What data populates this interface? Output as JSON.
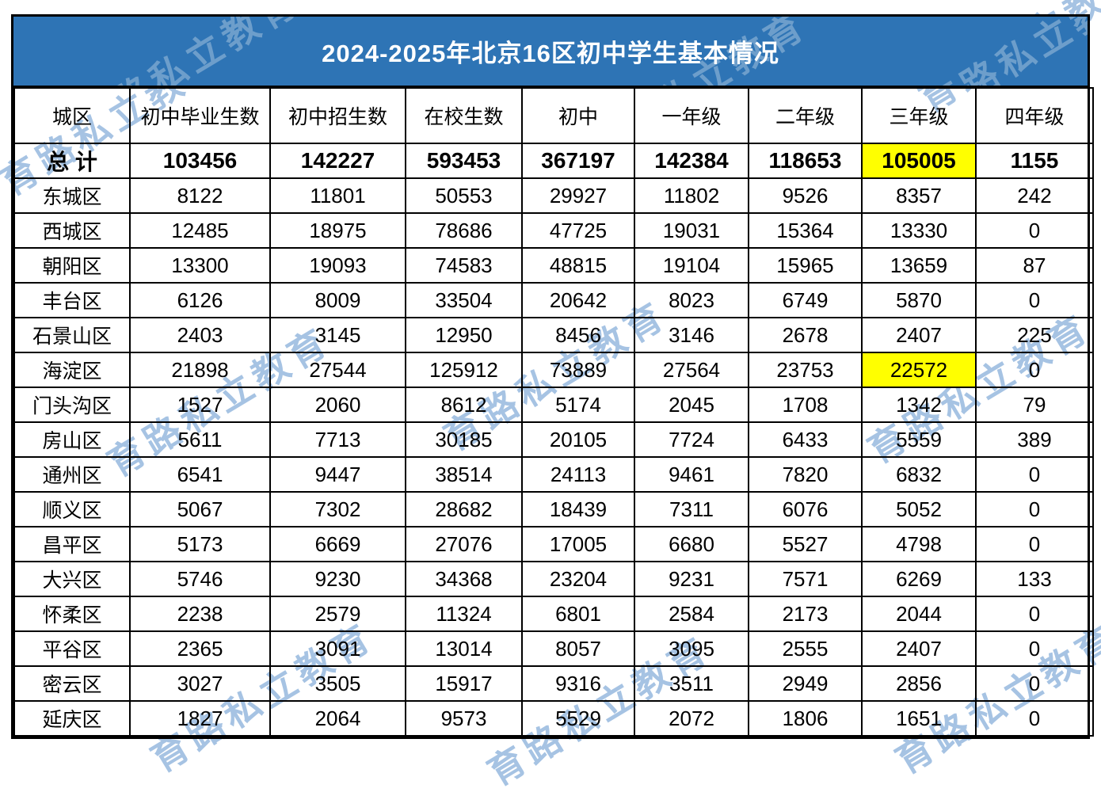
{
  "title": "2024-2025年北京16区初中学生基本情况",
  "watermark_text": "育路私立教育",
  "colors": {
    "title_bar_bg": "#2e74b5",
    "title_text": "#ffffff",
    "highlight": "#ffff00",
    "watermark": "#a6c3e3",
    "border": "#000000"
  },
  "chart_data": {
    "type": "table",
    "title": "2024-2025年北京16区初中学生基本情况",
    "columns": [
      "城区",
      "初中毕业生数",
      "初中招生数",
      "在校生数",
      "初中",
      "一年级",
      "二年级",
      "三年级",
      "四年级"
    ],
    "total_row": {
      "label": "总 计",
      "values": [
        103456,
        142227,
        593453,
        367197,
        142384,
        118653,
        105005,
        1155
      ],
      "highlight_value_index": 6
    },
    "rows": [
      {
        "district": "东城区",
        "values": [
          8122,
          11801,
          50553,
          29927,
          11802,
          9526,
          8357,
          242
        ]
      },
      {
        "district": "西城区",
        "values": [
          12485,
          18975,
          78686,
          47725,
          19031,
          15364,
          13330,
          0
        ]
      },
      {
        "district": "朝阳区",
        "values": [
          13300,
          19093,
          74583,
          48815,
          19104,
          15965,
          13659,
          87
        ]
      },
      {
        "district": "丰台区",
        "values": [
          6126,
          8009,
          33504,
          20642,
          8023,
          6749,
          5870,
          0
        ]
      },
      {
        "district": "石景山区",
        "values": [
          2403,
          3145,
          12950,
          8456,
          3146,
          2678,
          2407,
          225
        ]
      },
      {
        "district": "海淀区",
        "values": [
          21898,
          27544,
          125912,
          73889,
          27564,
          23753,
          22572,
          0
        ],
        "highlight_value_index": 6
      },
      {
        "district": "门头沟区",
        "values": [
          1527,
          2060,
          8612,
          5174,
          2045,
          1708,
          1342,
          79
        ]
      },
      {
        "district": "房山区",
        "values": [
          5611,
          7713,
          30185,
          20105,
          7724,
          6433,
          5559,
          389
        ]
      },
      {
        "district": "通州区",
        "values": [
          6541,
          9447,
          38514,
          24113,
          9461,
          7820,
          6832,
          0
        ]
      },
      {
        "district": "顺义区",
        "values": [
          5067,
          7302,
          28682,
          18439,
          7311,
          6076,
          5052,
          0
        ]
      },
      {
        "district": "昌平区",
        "values": [
          5173,
          6669,
          27076,
          17005,
          6680,
          5527,
          4798,
          0
        ]
      },
      {
        "district": "大兴区",
        "values": [
          5746,
          9230,
          34368,
          23204,
          9231,
          7571,
          6269,
          133
        ]
      },
      {
        "district": "怀柔区",
        "values": [
          2238,
          2579,
          11324,
          6801,
          2584,
          2173,
          2044,
          0
        ]
      },
      {
        "district": "平谷区",
        "values": [
          2365,
          3091,
          13014,
          8057,
          3095,
          2555,
          2407,
          0
        ]
      },
      {
        "district": "密云区",
        "values": [
          3027,
          3505,
          15917,
          9316,
          3511,
          2949,
          2856,
          0
        ]
      },
      {
        "district": "延庆区",
        "values": [
          1827,
          2064,
          9573,
          5529,
          2072,
          1806,
          1651,
          0
        ]
      }
    ]
  }
}
